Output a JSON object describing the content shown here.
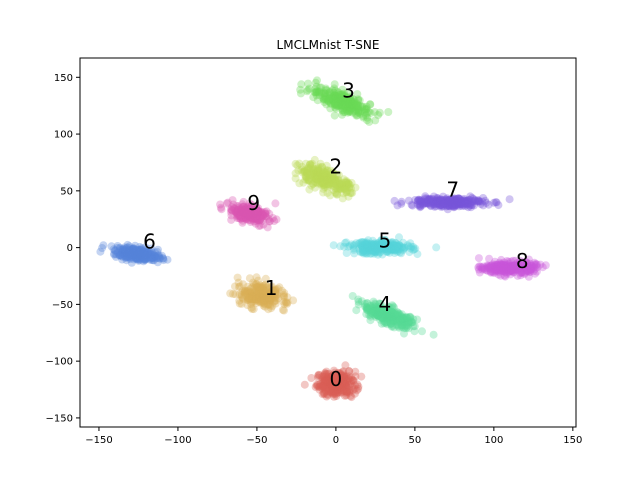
{
  "chart_data": {
    "type": "scatter",
    "title": "LMCLMnist T-SNE",
    "xlabel": "",
    "ylabel": "",
    "xlim": [
      -162,
      152
    ],
    "ylim": [
      -158,
      167
    ],
    "xticks": [
      -150,
      -100,
      -50,
      0,
      50,
      100,
      150
    ],
    "yticks": [
      -150,
      -100,
      -50,
      0,
      50,
      100,
      150
    ],
    "grid": false,
    "point_opacity": 0.35,
    "clusters": [
      {
        "label": "0",
        "color": "#db5f57",
        "center": [
          0,
          -120
        ],
        "spread": [
          11,
          10
        ],
        "angle": 0,
        "count": 260,
        "label_pos": [
          0,
          -117
        ]
      },
      {
        "label": "1",
        "color": "#dbb057",
        "center": [
          -48,
          -42
        ],
        "spread": [
          13,
          9
        ],
        "angle": -25,
        "count": 260,
        "label_pos": [
          -41,
          -37
        ]
      },
      {
        "label": "2",
        "color": "#b9db57",
        "center": [
          -7,
          60
        ],
        "spread": [
          18,
          7
        ],
        "angle": -33,
        "count": 260,
        "label_pos": [
          0,
          70
        ]
      },
      {
        "label": "3",
        "color": "#69db57",
        "center": [
          5,
          128
        ],
        "spread": [
          21,
          7
        ],
        "angle": -30,
        "count": 260,
        "label_pos": [
          8,
          137
        ]
      },
      {
        "label": "4",
        "color": "#57db94",
        "center": [
          33,
          -60
        ],
        "spread": [
          17,
          6
        ],
        "angle": -32,
        "count": 260,
        "label_pos": [
          31,
          -51
        ]
      },
      {
        "label": "5",
        "color": "#57d3db",
        "center": [
          28,
          0
        ],
        "spread": [
          18,
          5
        ],
        "angle": 0,
        "count": 260,
        "label_pos": [
          31,
          5
        ]
      },
      {
        "label": "6",
        "color": "#5784db",
        "center": [
          -125,
          -6
        ],
        "spread": [
          14,
          5
        ],
        "angle": -12,
        "count": 260,
        "label_pos": [
          -118,
          4
        ]
      },
      {
        "label": "7",
        "color": "#7957db",
        "center": [
          70,
          40
        ],
        "spread": [
          22,
          4
        ],
        "angle": 0,
        "count": 260,
        "label_pos": [
          74,
          50
        ]
      },
      {
        "label": "8",
        "color": "#c957db",
        "center": [
          110,
          -18
        ],
        "spread": [
          15,
          5
        ],
        "angle": 0,
        "count": 260,
        "label_pos": [
          118,
          -13
        ]
      },
      {
        "label": "9",
        "color": "#db57b2",
        "center": [
          -55,
          30
        ],
        "spread": [
          12,
          6
        ],
        "angle": -20,
        "count": 260,
        "label_pos": [
          -52,
          38
        ]
      }
    ]
  }
}
